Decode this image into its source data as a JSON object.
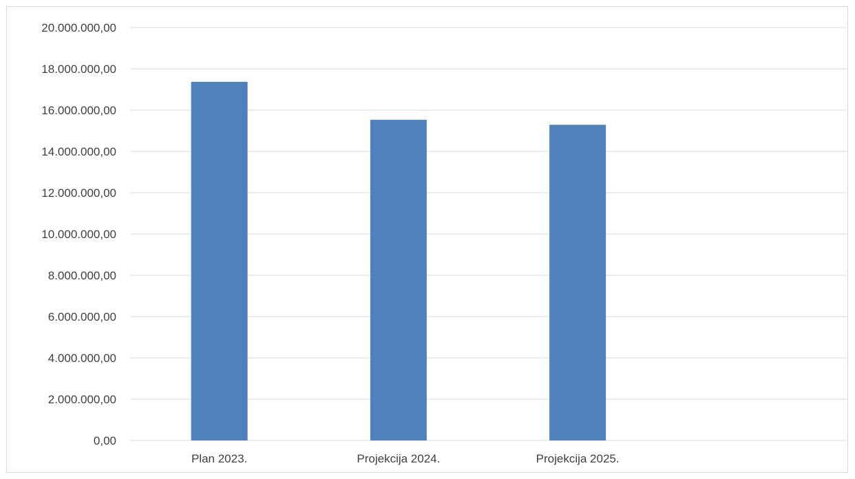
{
  "chart_data": {
    "type": "bar",
    "categories": [
      "Plan 2023.",
      "Projekcija 2024.",
      "Projekcija 2025."
    ],
    "series": [
      {
        "values": [
          17370000,
          15530000,
          15290000
        ],
        "color": "#4f81bd"
      }
    ],
    "ylim": [
      0,
      20000000
    ],
    "yticks": [
      0,
      2000000,
      4000000,
      6000000,
      8000000,
      10000000,
      12000000,
      14000000,
      16000000,
      18000000,
      20000000
    ],
    "ytick_labels": [
      "0,00",
      "2.000.000,00",
      "4.000.000,00",
      "6.000.000,00",
      "8.000.000,00",
      "10.000.000,00",
      "12.000.000,00",
      "14.000.000,00",
      "16.000.000,00",
      "18.000.000,00",
      "20.000.000,00"
    ],
    "grid": true,
    "gridline_color": "#d9d9d9",
    "legend": "none"
  }
}
